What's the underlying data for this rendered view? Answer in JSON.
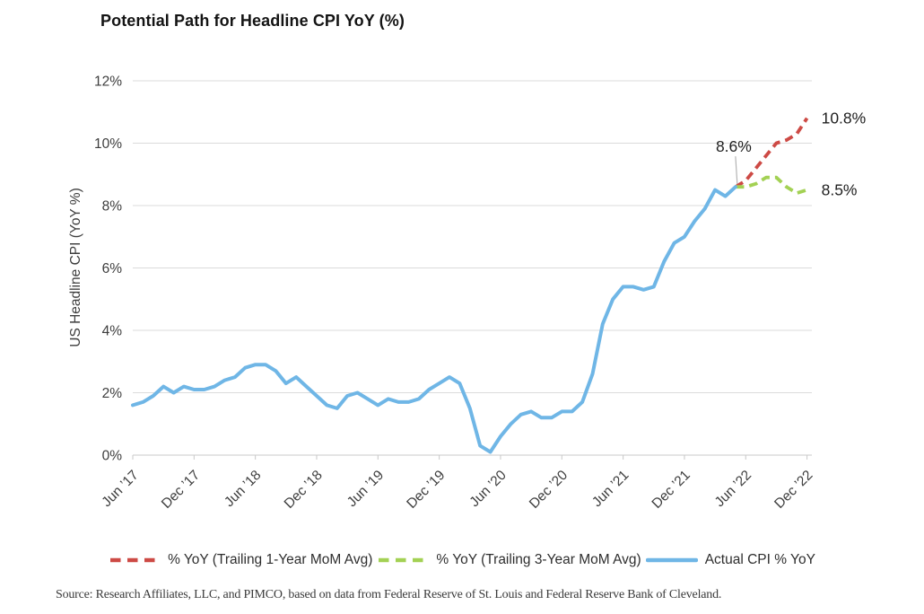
{
  "title": "Potential Path for Headline CPI YoY (%)",
  "source": "Source: Research Affiliates, LLC, and PIMCO, based on data from Federal Reserve of St. Louis and Federal Reserve Bank of Cleveland.",
  "colors": {
    "blue": "#6FB6E6",
    "red": "#CD4A45",
    "green": "#A3D154",
    "gridline": "#DBDBDB",
    "axis": "#C8C8C8",
    "tick_text": "#3D3D3D",
    "annotation_text": "#1F1F1F",
    "leader_line": "#B3B3B3"
  },
  "legend": [
    {
      "key": "trailing-1yr",
      "label": "% YoY (Trailing 1-Year MoM Avg)",
      "color": "#CD4A45",
      "style": "dashed"
    },
    {
      "key": "trailing-3yr",
      "label": "% YoY (Trailing 3-Year MoM Avg)",
      "color": "#A3D154",
      "style": "dashed"
    },
    {
      "key": "actual-cpi",
      "label": "Actual CPI % YoY",
      "color": "#6FB6E6",
      "style": "solid"
    }
  ],
  "y_axis": {
    "title": "US Headline CPI (YoY %)",
    "ticks": [
      "0%",
      "2%",
      "4%",
      "6%",
      "8%",
      "10%",
      "12%"
    ],
    "tick_values": [
      0,
      2,
      4,
      6,
      8,
      10,
      12
    ]
  },
  "x_axis": {
    "ticks": [
      "Jun ’17",
      "Dec ’17",
      "Jun ’18",
      "Dec ’18",
      "Jun ’19",
      "Dec ’19",
      "Jun ’20",
      "Dec ’20",
      "Jun ’21",
      "Dec ’21",
      "Jun ’22",
      "Dec ’22"
    ],
    "months_per_tick": 6
  },
  "chart_data": {
    "type": "line",
    "title": "Potential Path for Headline CPI YoY (%)",
    "xlabel": "",
    "ylabel": "US Headline CPI (YoY %)",
    "ylim": [
      0,
      12
    ],
    "y_tick_step": 2,
    "grid": "horizontal",
    "legend_position": "bottom",
    "x_start": "Jun 2017",
    "x_end": "Dec 2022",
    "x_frequency": "monthly",
    "x_tick_labels": [
      "Jun ’17",
      "Dec ’17",
      "Jun ’18",
      "Dec ’18",
      "Jun ’19",
      "Dec ’19",
      "Jun ’20",
      "Dec ’20",
      "Jun ’21",
      "Dec ’21",
      "Jun ’22",
      "Dec ’22"
    ],
    "series": [
      {
        "name": "Actual CPI % YoY",
        "key": "actual-cpi",
        "color": "#6FB6E6",
        "style": "solid",
        "start_month_index": 0,
        "values": [
          1.6,
          1.7,
          1.9,
          2.2,
          2.0,
          2.2,
          2.1,
          2.1,
          2.2,
          2.4,
          2.5,
          2.8,
          2.9,
          2.9,
          2.7,
          2.3,
          2.5,
          2.2,
          1.9,
          1.6,
          1.5,
          1.9,
          2.0,
          1.8,
          1.6,
          1.8,
          1.7,
          1.7,
          1.8,
          2.1,
          2.3,
          2.5,
          2.3,
          1.5,
          0.3,
          0.1,
          0.6,
          1.0,
          1.3,
          1.4,
          1.2,
          1.2,
          1.4,
          1.4,
          1.7,
          2.6,
          4.2,
          5.0,
          5.4,
          5.4,
          5.3,
          5.4,
          6.2,
          6.8,
          7.0,
          7.5,
          7.9,
          8.5,
          8.3,
          8.6
        ]
      },
      {
        "name": "% YoY (Trailing 1-Year MoM Avg)",
        "key": "trailing-1yr",
        "color": "#CD4A45",
        "style": "dashed",
        "start_month_index": 59,
        "values": [
          8.6,
          8.8,
          9.2,
          9.6,
          10.0,
          10.1,
          10.3,
          10.8
        ]
      },
      {
        "name": "% YoY (Trailing 3-Year MoM Avg)",
        "key": "trailing-3yr",
        "color": "#A3D154",
        "style": "dashed",
        "start_month_index": 59,
        "values": [
          8.6,
          8.6,
          8.7,
          8.9,
          8.9,
          8.6,
          8.4,
          8.5
        ]
      }
    ],
    "annotations": [
      {
        "text": "8.6%",
        "month_index": 59,
        "value": 8.6,
        "placement": "above-leader"
      },
      {
        "text": "10.8%",
        "month_index": 66,
        "value": 10.8,
        "placement": "right"
      },
      {
        "text": "8.5%",
        "month_index": 66,
        "value": 8.5,
        "placement": "right"
      }
    ]
  }
}
